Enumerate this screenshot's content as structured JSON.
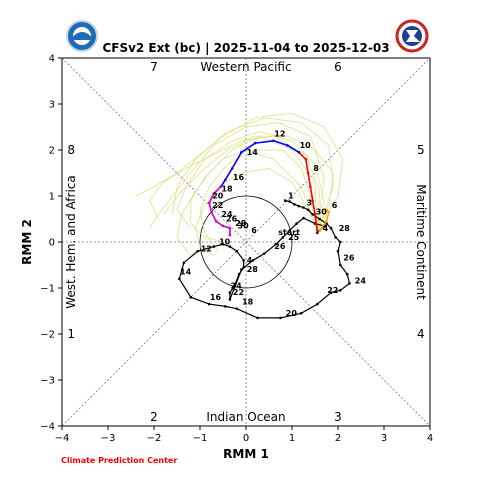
{
  "chart_data": {
    "type": "line",
    "title": "CFSv2 Ext (bc) | 2025-11-04 to 2025-12-03",
    "xlabel": "RMM 1",
    "ylabel": "RMM 2",
    "xlim": [
      -4,
      4
    ],
    "ylim": [
      -4,
      4
    ],
    "xticks": [
      "−4",
      "−3",
      "−2",
      "−1",
      "0",
      "1",
      "2",
      "3",
      "4"
    ],
    "yticks": [
      "−4",
      "−3",
      "−2",
      "−1",
      "0",
      "1",
      "2",
      "3",
      "4"
    ],
    "grid": false,
    "phase_numbers": [
      {
        "label": "1",
        "x": -3.8,
        "y": -2.0
      },
      {
        "label": "2",
        "x": -2.0,
        "y": -3.8
      },
      {
        "label": "3",
        "x": 2.0,
        "y": -3.8
      },
      {
        "label": "4",
        "x": 3.8,
        "y": -2.0
      },
      {
        "label": "5",
        "x": 3.8,
        "y": 2.0
      },
      {
        "label": "6",
        "x": 2.0,
        "y": 3.8
      },
      {
        "label": "7",
        "x": -2.0,
        "y": 3.8
      },
      {
        "label": "8",
        "x": -3.8,
        "y": 2.0
      }
    ],
    "region_labels": [
      {
        "label": "Western Pacific",
        "x": 0,
        "y": 3.8,
        "rotate": 0
      },
      {
        "label": "Indian Ocean",
        "x": 0,
        "y": -3.8,
        "rotate": 0
      },
      {
        "label": "West. Hem. and Africa",
        "x": -3.8,
        "y": 0,
        "rotate": -90
      },
      {
        "label": "Maritime Continent",
        "x": 3.8,
        "y": 0,
        "rotate": 90
      }
    ],
    "start_label": {
      "text": "start",
      "x": 0.7,
      "y": 0.15
    },
    "observed": {
      "color": "#000000",
      "points": [
        [
          0.85,
          0.9
        ],
        [
          0.95,
          0.88
        ],
        [
          1.05,
          0.82
        ],
        [
          1.15,
          0.78
        ],
        [
          1.25,
          0.75
        ],
        [
          1.35,
          0.7
        ],
        [
          1.45,
          0.6
        ],
        [
          1.6,
          0.5
        ],
        [
          1.75,
          0.4
        ],
        [
          1.85,
          0.3
        ],
        [
          1.95,
          0.1
        ],
        [
          2.05,
          0.0
        ],
        [
          2.0,
          -0.2
        ],
        [
          2.05,
          -0.5
        ],
        [
          2.2,
          -0.7
        ],
        [
          2.25,
          -0.9
        ],
        [
          2.05,
          -1.05
        ],
        [
          1.85,
          -1.1
        ],
        [
          1.55,
          -1.35
        ],
        [
          1.2,
          -1.55
        ],
        [
          0.75,
          -1.65
        ],
        [
          0.25,
          -1.65
        ],
        [
          -0.2,
          -1.45
        ],
        [
          -0.45,
          -1.4
        ],
        [
          -0.8,
          -1.35
        ],
        [
          -1.2,
          -1.2
        ],
        [
          -1.45,
          -0.8
        ],
        [
          -1.35,
          -0.45
        ],
        [
          -1.05,
          -0.2
        ],
        [
          -0.7,
          -0.1
        ],
        [
          -0.5,
          -0.05
        ],
        [
          -0.35,
          -0.1
        ],
        [
          -0.2,
          -0.2
        ],
        [
          -0.05,
          -0.4
        ],
        [
          -0.05,
          -0.55
        ],
        [
          -0.15,
          -0.7
        ],
        [
          -0.25,
          -0.95
        ],
        [
          -0.35,
          -1.1
        ],
        [
          -0.35,
          -1.25
        ],
        [
          -0.1,
          -0.6
        ],
        [
          0.15,
          -0.4
        ],
        [
          0.4,
          -0.25
        ],
        [
          0.65,
          -0.05
        ],
        [
          0.8,
          0.1
        ],
        [
          0.95,
          0.25
        ],
        [
          1.1,
          0.4
        ],
        [
          1.25,
          0.52
        ],
        [
          1.5,
          0.4
        ],
        [
          1.7,
          0.35
        ],
        [
          1.6,
          0.25
        ],
        [
          1.55,
          0.2
        ]
      ],
      "labels": [
        {
          "text": "1",
          "x": 0.85,
          "y": 0.9
        },
        {
          "text": "3",
          "x": 1.25,
          "y": 0.75
        },
        {
          "text": "30",
          "x": 1.45,
          "y": 0.55
        },
        {
          "text": "28",
          "x": 1.95,
          "y": 0.2
        },
        {
          "text": "26",
          "x": 2.05,
          "y": -0.45
        },
        {
          "text": "24",
          "x": 2.3,
          "y": -0.95
        },
        {
          "text": "22",
          "x": 1.7,
          "y": -1.15
        },
        {
          "text": "20",
          "x": 0.8,
          "y": -1.65
        },
        {
          "text": "18",
          "x": -0.15,
          "y": -1.4
        },
        {
          "text": "16",
          "x": -0.85,
          "y": -1.3
        },
        {
          "text": "14",
          "x": -1.5,
          "y": -0.75
        },
        {
          "text": "12",
          "x": -1.05,
          "y": -0.25
        },
        {
          "text": "10",
          "x": -0.65,
          "y": -0.1
        },
        {
          "text": "28",
          "x": -0.05,
          "y": -0.7
        },
        {
          "text": "4",
          "x": -0.05,
          "y": -0.5
        },
        {
          "text": "26",
          "x": 0.55,
          "y": -0.2
        },
        {
          "text": "25",
          "x": 0.85,
          "y": 0.0
        },
        {
          "text": "24",
          "x": -0.4,
          "y": -1.05
        },
        {
          "text": "22",
          "x": -0.35,
          "y": -1.2
        },
        {
          "text": "4",
          "x": 1.6,
          "y": 0.2
        }
      ]
    },
    "forecast_segments": [
      {
        "color": "#ff0000",
        "points": [
          [
            1.55,
            0.25
          ],
          [
            1.5,
            0.6
          ],
          [
            1.45,
            0.9
          ],
          [
            1.4,
            1.2
          ],
          [
            1.35,
            1.5
          ],
          [
            1.3,
            1.8
          ],
          [
            1.15,
            1.95
          ]
        ],
        "labels": [
          {
            "text": "8",
            "x": 1.4,
            "y": 1.5
          }
        ]
      },
      {
        "color": "#ffa500",
        "points": [
          [
            1.6,
            0.25
          ],
          [
            1.75,
            0.45
          ],
          [
            1.8,
            0.65
          ],
          [
            1.75,
            0.7
          ]
        ],
        "labels": [
          {
            "text": "6",
            "x": 1.8,
            "y": 0.7
          }
        ]
      },
      {
        "color": "#0000ff",
        "points": [
          [
            1.15,
            1.95
          ],
          [
            0.9,
            2.1
          ],
          [
            0.6,
            2.2
          ],
          [
            0.2,
            2.15
          ],
          [
            -0.1,
            1.95
          ],
          [
            -0.3,
            1.6
          ],
          [
            -0.45,
            1.35
          ],
          [
            -0.55,
            1.2
          ]
        ],
        "labels": [
          {
            "text": "10",
            "x": 1.1,
            "y": 2.0
          },
          {
            "text": "12",
            "x": 0.55,
            "y": 2.25
          },
          {
            "text": "14",
            "x": -0.05,
            "y": 1.85
          },
          {
            "text": "16",
            "x": -0.35,
            "y": 1.3
          }
        ]
      },
      {
        "color": "#cc00cc",
        "points": [
          [
            -0.55,
            1.2
          ],
          [
            -0.7,
            1.05
          ],
          [
            -0.8,
            0.85
          ],
          [
            -0.75,
            0.65
          ],
          [
            -0.65,
            0.45
          ],
          [
            -0.5,
            0.35
          ],
          [
            -0.35,
            0.3
          ],
          [
            -0.35,
            0.15
          ]
        ],
        "labels": [
          {
            "text": "18",
            "x": -0.6,
            "y": 1.05
          },
          {
            "text": "20",
            "x": -0.8,
            "y": 0.9
          },
          {
            "text": "22",
            "x": -0.8,
            "y": 0.7
          },
          {
            "text": "24",
            "x": -0.6,
            "y": 0.5
          },
          {
            "text": "26",
            "x": -0.5,
            "y": 0.4
          },
          {
            "text": "28",
            "x": -0.3,
            "y": 0.3
          },
          {
            "text": "30",
            "x": -0.25,
            "y": 0.25
          },
          {
            "text": "6",
            "x": 0.05,
            "y": 0.15
          }
        ]
      }
    ],
    "ensemble_members": [
      {
        "color": "#e0e08a",
        "points": [
          [
            1.55,
            0.25
          ],
          [
            1.7,
            0.9
          ],
          [
            1.5,
            1.7
          ],
          [
            1.0,
            2.2
          ],
          [
            0.3,
            2.4
          ],
          [
            -0.3,
            2.2
          ],
          [
            -0.9,
            1.8
          ],
          [
            -1.3,
            1.2
          ],
          [
            -1.5,
            0.7
          ],
          [
            -1.2,
            0.3
          ]
        ]
      },
      {
        "color": "#e0e08a",
        "points": [
          [
            1.55,
            0.25
          ],
          [
            1.9,
            1.2
          ],
          [
            1.8,
            2.1
          ],
          [
            1.2,
            2.6
          ],
          [
            0.4,
            2.7
          ],
          [
            -0.4,
            2.4
          ],
          [
            -1.0,
            1.9
          ],
          [
            -1.5,
            1.5
          ],
          [
            -2.0,
            1.2
          ],
          [
            -2.4,
            1.0
          ]
        ]
      },
      {
        "color": "#e0e08a",
        "points": [
          [
            1.55,
            0.25
          ],
          [
            1.4,
            1.0
          ],
          [
            1.2,
            1.6
          ],
          [
            0.8,
            2.0
          ],
          [
            0.2,
            2.0
          ],
          [
            -0.4,
            1.7
          ],
          [
            -0.8,
            1.2
          ],
          [
            -1.0,
            0.7
          ],
          [
            -0.9,
            0.2
          ],
          [
            -0.6,
            -0.2
          ]
        ]
      },
      {
        "color": "#e0e08a",
        "points": [
          [
            1.55,
            0.25
          ],
          [
            1.6,
            1.1
          ],
          [
            1.3,
            1.9
          ],
          [
            0.6,
            2.3
          ],
          [
            -0.1,
            2.2
          ],
          [
            -0.7,
            1.9
          ],
          [
            -1.3,
            1.6
          ],
          [
            -1.8,
            1.3
          ],
          [
            -2.1,
            0.9
          ],
          [
            -1.9,
            0.5
          ]
        ]
      },
      {
        "color": "#e0e08a",
        "points": [
          [
            1.55,
            0.25
          ],
          [
            1.3,
            0.8
          ],
          [
            1.0,
            1.3
          ],
          [
            0.5,
            1.6
          ],
          [
            -0.1,
            1.5
          ],
          [
            -0.6,
            1.2
          ],
          [
            -0.9,
            0.8
          ],
          [
            -1.1,
            0.3
          ],
          [
            -1.0,
            -0.1
          ],
          [
            -0.7,
            -0.3
          ]
        ]
      },
      {
        "color": "#e0e08a",
        "points": [
          [
            1.55,
            0.25
          ],
          [
            2.0,
            1.0
          ],
          [
            2.1,
            1.8
          ],
          [
            1.7,
            2.5
          ],
          [
            1.0,
            2.8
          ],
          [
            0.2,
            2.7
          ],
          [
            -0.5,
            2.3
          ],
          [
            -1.1,
            1.8
          ],
          [
            -1.5,
            1.2
          ],
          [
            -1.6,
            0.6
          ]
        ]
      },
      {
        "color": "#e0e08a",
        "points": [
          [
            1.55,
            0.25
          ],
          [
            1.5,
            1.3
          ],
          [
            1.0,
            2.0
          ],
          [
            0.3,
            2.3
          ],
          [
            -0.3,
            2.0
          ],
          [
            -0.8,
            1.5
          ],
          [
            -1.1,
            1.1
          ],
          [
            -1.4,
            0.6
          ],
          [
            -1.5,
            0.1
          ],
          [
            -1.2,
            -0.3
          ]
        ]
      },
      {
        "color": "#e0e08a",
        "points": [
          [
            1.55,
            0.25
          ],
          [
            1.8,
            0.8
          ],
          [
            1.9,
            1.5
          ],
          [
            1.5,
            2.0
          ],
          [
            0.9,
            2.3
          ],
          [
            0.2,
            2.3
          ],
          [
            -0.4,
            2.0
          ],
          [
            -0.9,
            1.6
          ],
          [
            -1.4,
            1.1
          ],
          [
            -1.8,
            0.6
          ]
        ]
      },
      {
        "color": "#e0e08a",
        "points": [
          [
            1.55,
            0.25
          ],
          [
            1.2,
            1.2
          ],
          [
            0.6,
            1.8
          ],
          [
            0.0,
            2.0
          ],
          [
            -0.5,
            1.8
          ],
          [
            -0.9,
            1.4
          ],
          [
            -1.2,
            0.9
          ],
          [
            -1.2,
            0.4
          ],
          [
            -0.9,
            0.1
          ],
          [
            -0.5,
            0.0
          ]
        ]
      },
      {
        "color": "#e0e08a",
        "points": [
          [
            1.55,
            0.25
          ],
          [
            1.7,
            1.4
          ],
          [
            1.4,
            2.3
          ],
          [
            0.7,
            2.6
          ],
          [
            0.0,
            2.5
          ],
          [
            -0.7,
            2.1
          ],
          [
            -1.2,
            1.5
          ],
          [
            -1.6,
            1.0
          ],
          [
            -1.9,
            0.6
          ],
          [
            -2.1,
            0.3
          ]
        ]
      }
    ]
  },
  "footer": {
    "credit": "Climate Prediction Center"
  },
  "logos": {
    "left": "noaa-logo",
    "right": "nws-logo"
  },
  "colors": {
    "observed": "#000000",
    "ensemble": "#e0e08a",
    "credit": "#ff0000"
  }
}
